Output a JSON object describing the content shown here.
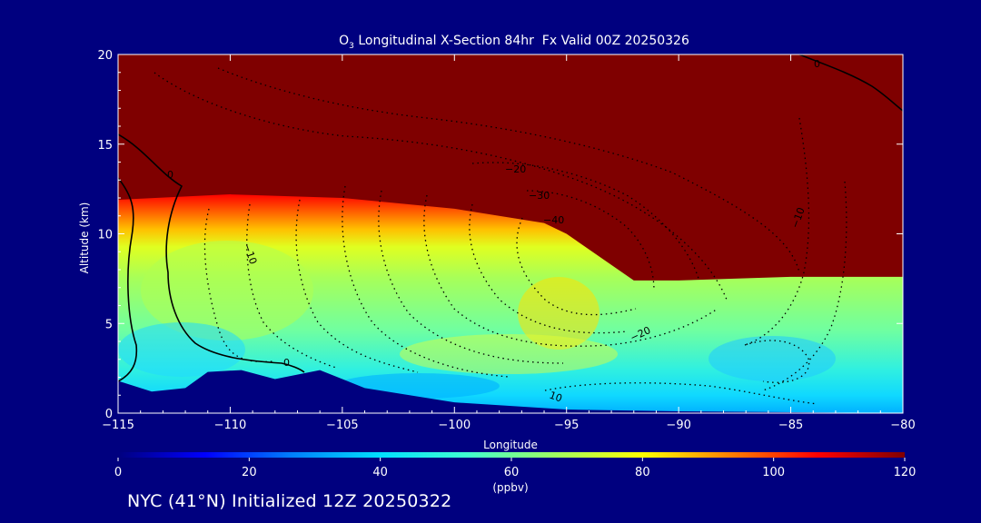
{
  "chart_data": {
    "type": "heatmap",
    "title": "O3 Longitudinal X-Section 84hr  Fx Valid 00Z 20250326",
    "title_parts": {
      "species": "O",
      "subscript": "3",
      "rest": " Longitudinal X-Section 84hr  Fx Valid 00Z 20250326"
    },
    "xlabel": "Longitude",
    "ylabel": "Altitude (km)",
    "xlim": [
      -115,
      -80
    ],
    "ylim": [
      0,
      20
    ],
    "x_ticks": [
      -115,
      -110,
      -105,
      -100,
      -95,
      -90,
      -85,
      -80
    ],
    "x_tick_labels": [
      "−115",
      "−110",
      "−105",
      "−100",
      "−95",
      "−90",
      "−85",
      "−80"
    ],
    "y_ticks": [
      0,
      5,
      10,
      15,
      20
    ],
    "y_tick_labels": [
      "0",
      "5",
      "10",
      "15",
      "20"
    ],
    "colorbar": {
      "min": 0,
      "max": 120,
      "ticks": [
        0,
        20,
        40,
        60,
        80,
        100,
        120
      ],
      "tick_labels": [
        "0",
        "20",
        "40",
        "60",
        "80",
        "100",
        "120"
      ],
      "label": "(ppbv)",
      "colors": [
        "#00007f",
        "#0000ff",
        "#0080ff",
        "#00e0ff",
        "#40ffd0",
        "#a0ff60",
        "#ffff00",
        "#ff8000",
        "#ff0000",
        "#800000"
      ]
    },
    "colors": {
      "background": "#00007f",
      "stratosphere": "#7f0000"
    },
    "tropopause_height_km": [
      {
        "lon": -115,
        "z": 11.9
      },
      {
        "lon": -110,
        "z": 12.2
      },
      {
        "lon": -105,
        "z": 12.0
      },
      {
        "lon": -100,
        "z": 11.4
      },
      {
        "lon": -96,
        "z": 10.6
      },
      {
        "lon": -95,
        "z": 10.0
      },
      {
        "lon": -92,
        "z": 7.4
      },
      {
        "lon": -90,
        "z": 7.4
      },
      {
        "lon": -85,
        "z": 7.6
      },
      {
        "lon": -80,
        "z": 7.6
      }
    ],
    "terrain_height_km": [
      {
        "lon": -115,
        "z": 1.8
      },
      {
        "lon": -113.5,
        "z": 1.2
      },
      {
        "lon": -112,
        "z": 1.4
      },
      {
        "lon": -111,
        "z": 2.3
      },
      {
        "lon": -109.5,
        "z": 2.4
      },
      {
        "lon": -108,
        "z": 1.9
      },
      {
        "lon": -106,
        "z": 2.4
      },
      {
        "lon": -104,
        "z": 1.4
      },
      {
        "lon": -100,
        "z": 0.6
      },
      {
        "lon": -95,
        "z": 0.2
      },
      {
        "lon": -90,
        "z": 0.1
      },
      {
        "lon": -80,
        "z": 0.0
      }
    ],
    "contour_labels": [
      "0",
      "0",
      "0",
      "−10",
      "−10",
      "−20",
      "−30",
      "−40",
      "−20",
      "10",
      "10"
    ],
    "annotation_label_values": {
      "zero_upper_left": "0",
      "zero_lower": "0",
      "zero_upper_right": "0",
      "minus10_left": "−10",
      "minus20": "−20",
      "minus30": "−30",
      "minus40": "−40",
      "minus20_lower": "−20",
      "plus10_lower": "10",
      "minus10_right": "−10"
    }
  },
  "footer": {
    "text": "NYC (41°N) Initialized 12Z 20250322"
  }
}
